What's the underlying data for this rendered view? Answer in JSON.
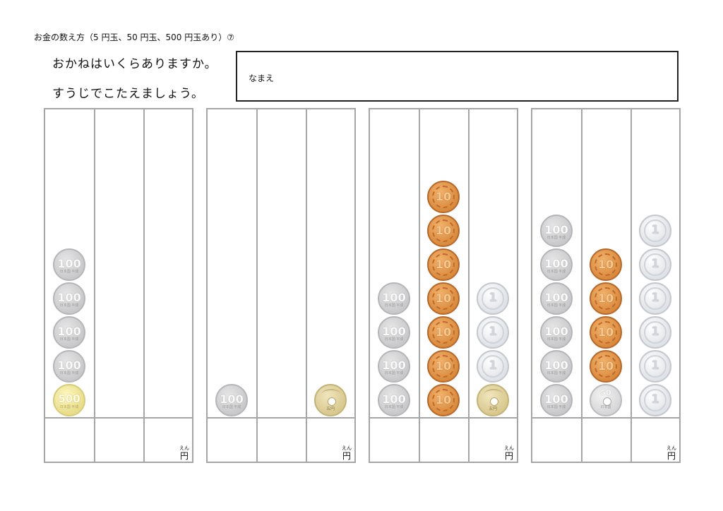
{
  "header": {
    "title": "お金の数え方（5 円玉、50 円玉、500 円玉あり）⑦",
    "instruction_line1": "おかねはいくらありますか。",
    "instruction_line2": "すうじでこたえましょう。"
  },
  "name_box": {
    "label": "なまえ"
  },
  "answer_unit": {
    "ruby": "えん",
    "unit": "円"
  },
  "coin_faces": {
    "100": {
      "number": "100",
      "sub": "日本国 平成"
    },
    "500": {
      "number": "500",
      "sub": "日本国 平成"
    },
    "10": {
      "number": "10",
      "sub": ""
    },
    "1": {
      "number": "1",
      "sub": ""
    },
    "5": {
      "number": "",
      "sub": "五円"
    },
    "50": {
      "number": "50",
      "sub": "日本国"
    }
  },
  "problems": [
    {
      "columns": [
        [
          "500",
          "100",
          "100",
          "100",
          "100"
        ],
        [],
        []
      ]
    },
    {
      "columns": [
        [
          "100"
        ],
        [],
        [
          "5"
        ]
      ]
    },
    {
      "columns": [
        [
          "100",
          "100",
          "100",
          "100"
        ],
        [
          "10",
          "10",
          "10",
          "10",
          "10",
          "10",
          "10"
        ],
        [
          "5",
          "1",
          "1",
          "1"
        ]
      ]
    },
    {
      "columns": [
        [
          "100",
          "100",
          "100",
          "100",
          "100",
          "100"
        ],
        [
          "50",
          "10",
          "10",
          "10",
          "10"
        ],
        [
          "1",
          "1",
          "1",
          "1",
          "1",
          "1"
        ]
      ]
    }
  ]
}
